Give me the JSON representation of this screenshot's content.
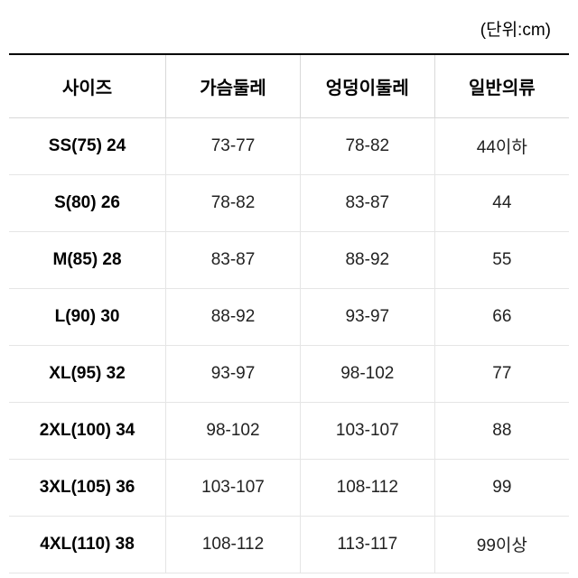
{
  "unit_label": "(단위:cm)",
  "table": {
    "columns": [
      "사이즈",
      "가슴둘레",
      "엉덩이둘레",
      "일반의류"
    ],
    "rows": [
      [
        "SS(75) 24",
        "73-77",
        "78-82",
        "44이하"
      ],
      [
        "S(80) 26",
        "78-82",
        "83-87",
        "44"
      ],
      [
        "M(85) 28",
        "83-87",
        "88-92",
        "55"
      ],
      [
        "L(90) 30",
        "88-92",
        "93-97",
        "66"
      ],
      [
        "XL(95) 32",
        "93-97",
        "98-102",
        "77"
      ],
      [
        "2XL(100) 34",
        "98-102",
        "103-107",
        "88"
      ],
      [
        "3XL(105) 36",
        "103-107",
        "108-112",
        "99"
      ],
      [
        "4XL(110) 38",
        "108-112",
        "113-117",
        "99이상"
      ]
    ]
  }
}
